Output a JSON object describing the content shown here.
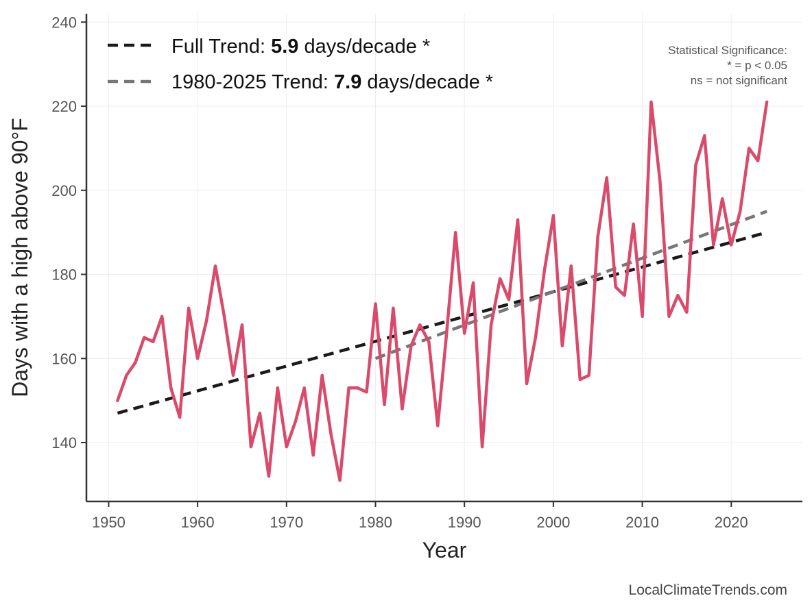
{
  "chart_data": {
    "type": "line",
    "title": "",
    "xlabel": "Year",
    "ylabel": "Days with a high above 90°F",
    "xlim": [
      1947.5,
      2028
    ],
    "ylim": [
      126,
      242
    ],
    "x_ticks": [
      1950,
      1960,
      1970,
      1980,
      1990,
      2000,
      2010,
      2020
    ],
    "y_ticks": [
      140,
      160,
      180,
      200,
      220,
      240
    ],
    "grid": true,
    "series": [
      {
        "name": "",
        "color": "#d94a6b",
        "x": [
          1951,
          1952,
          1953,
          1954,
          1955,
          1956,
          1957,
          1958,
          1959,
          1960,
          1961,
          1962,
          1963,
          1964,
          1965,
          1966,
          1967,
          1968,
          1969,
          1970,
          1971,
          1972,
          1973,
          1974,
          1975,
          1976,
          1977,
          1978,
          1979,
          1980,
          1981,
          1982,
          1983,
          1984,
          1985,
          1986,
          1987,
          1988,
          1989,
          1990,
          1991,
          1992,
          1993,
          1994,
          1995,
          1996,
          1997,
          1998,
          1999,
          2000,
          2001,
          2002,
          2003,
          2004,
          2005,
          2006,
          2007,
          2008,
          2009,
          2010,
          2011,
          2012,
          2013,
          2014,
          2015,
          2016,
          2017,
          2018,
          2019,
          2020,
          2021,
          2022,
          2023,
          2024
        ],
        "y": [
          150,
          156,
          159,
          165,
          164,
          170,
          153,
          146,
          172,
          160,
          169,
          182,
          170,
          156,
          168,
          139,
          147,
          132,
          153,
          139,
          145,
          153,
          137,
          156,
          142,
          131,
          153,
          153,
          152,
          173,
          149,
          172,
          148,
          163,
          168,
          164,
          144,
          166,
          190,
          166,
          178,
          139,
          168,
          179,
          174,
          193,
          154,
          165,
          181,
          194,
          163,
          182,
          155,
          156,
          189,
          203,
          177,
          175,
          192,
          170,
          221,
          202,
          170,
          175,
          171,
          206,
          213,
          187,
          198,
          187,
          195,
          210,
          207,
          221
        ]
      }
    ],
    "trends": [
      {
        "label_prefix": "Full Trend: ",
        "label_value": "5.9",
        "label_suffix": " days/decade *",
        "color": "#1a1a1a",
        "x": [
          1951,
          2024
        ],
        "y": [
          147,
          190
        ]
      },
      {
        "label_prefix": "1980-2025 Trend: ",
        "label_value": "7.9",
        "label_suffix": " days/decade *",
        "color": "#777777",
        "x": [
          1980,
          2024
        ],
        "y": [
          160,
          195
        ]
      }
    ],
    "legend_position": "top-left",
    "significance_note": [
      "Statistical Significance:",
      "* = p < 0.05",
      "ns = not significant"
    ]
  },
  "source": "LocalClimateTrends.com"
}
